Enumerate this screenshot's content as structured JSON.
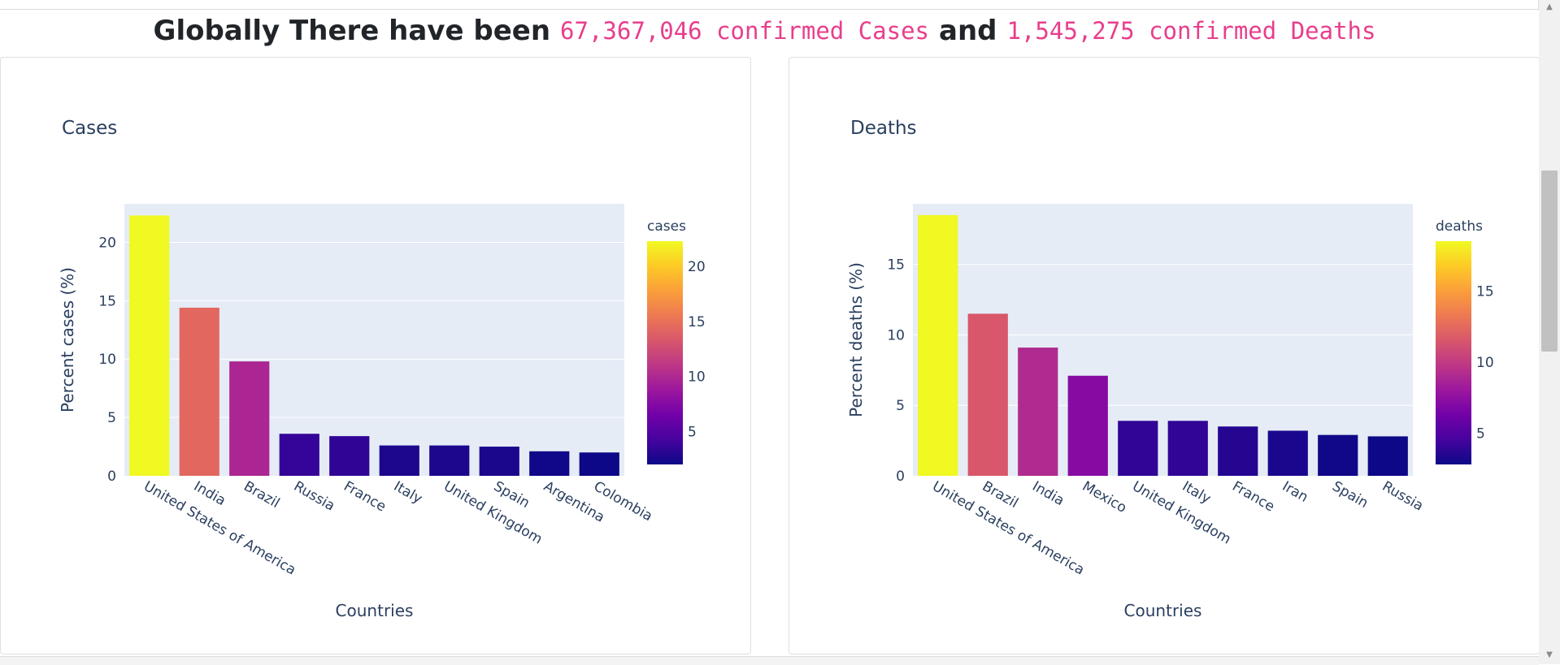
{
  "headline": {
    "prefix": "Globally There have been",
    "cases_value": "67,367,046 confirmed Cases",
    "conjunction": "and",
    "deaths_value": "1,545,275 confirmed Deaths"
  },
  "scrollbar": {
    "up_icon": "scroll-up-arrow-icon",
    "down_icon": "scroll-down-arrow-icon"
  },
  "chart_data": [
    {
      "type": "bar",
      "title": "Cases",
      "xlabel": "Countries",
      "ylabel": "Percent cases (%)",
      "categories": [
        "United States of America",
        "India",
        "Brazil",
        "Russia",
        "France",
        "Italy",
        "United Kingdom",
        "Spain",
        "Argentina",
        "Colombia"
      ],
      "values": [
        22.3,
        14.4,
        9.8,
        3.6,
        3.4,
        2.6,
        2.6,
        2.5,
        2.1,
        2.0
      ],
      "ylim": [
        0,
        23.3
      ],
      "yticks": [
        0,
        5,
        10,
        15,
        20
      ],
      "colorbar": {
        "title": "cases",
        "ticks": [
          5,
          10,
          15,
          20
        ],
        "range": [
          2.0,
          22.3
        ]
      },
      "colorscale": [
        "#0d0887",
        "#46039f",
        "#7201a8",
        "#9c179e",
        "#bd3786",
        "#d8576b",
        "#ed7953",
        "#fb9f3a",
        "#fdca26",
        "#f0f921"
      ],
      "grid": true,
      "legend": "right"
    },
    {
      "type": "bar",
      "title": "Deaths",
      "xlabel": "Countries",
      "ylabel": "Percent deaths (%)",
      "categories": [
        "United States of America",
        "Brazil",
        "India",
        "Mexico",
        "United Kingdom",
        "Italy",
        "France",
        "Iran",
        "Spain",
        "Russia"
      ],
      "values": [
        18.5,
        11.5,
        9.1,
        7.1,
        3.9,
        3.9,
        3.5,
        3.2,
        2.9,
        2.8
      ],
      "ylim": [
        0,
        19.3
      ],
      "yticks": [
        0,
        5,
        10,
        15
      ],
      "colorbar": {
        "title": "deaths",
        "ticks": [
          5,
          10,
          15
        ],
        "range": [
          2.8,
          18.5
        ]
      },
      "colorscale": [
        "#0d0887",
        "#46039f",
        "#7201a8",
        "#9c179e",
        "#bd3786",
        "#d8576b",
        "#ed7953",
        "#fb9f3a",
        "#fdca26",
        "#f0f921"
      ],
      "grid": true,
      "legend": "right"
    }
  ]
}
